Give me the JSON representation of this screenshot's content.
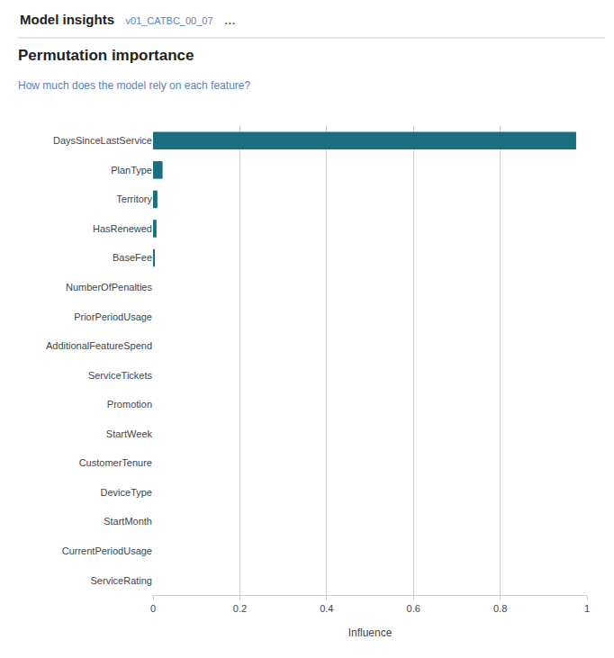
{
  "chart_data": {
    "type": "bar",
    "orientation": "horizontal",
    "annotations": [
      "Model insights",
      "v01_CATBC_00_07",
      "..."
    ],
    "title": "Permutation importance",
    "subtitle": "How much does the model rely on each feature?",
    "x_label": "Influence",
    "categories": [
      "DaysSinceLastService",
      "PlanType",
      "Territory",
      "HasRenewed",
      "BaseFee",
      "NumberOfPenalties",
      "PriorPeriodUsage",
      "AdditionalFeatureSpend",
      "ServiceTickets",
      "Promotion",
      "StartWeek",
      "CustomerTenure",
      "DeviceType",
      "StartMonth",
      "CurrentPeriodUsage",
      "ServiceRating"
    ],
    "values": [
      0.975,
      0.022,
      0.01,
      0.008,
      0.003,
      0.0,
      0.0,
      0.0,
      0.0,
      0.0,
      0.0,
      0.0,
      0.0,
      0.0,
      0.0,
      0.0
    ],
    "color": "#1a6e7e",
    "xlim": [
      0,
      1.0
    ],
    "xticks": [
      0,
      0.2,
      0.4,
      0.6,
      0.8,
      1
    ],
    "grid": true
  }
}
